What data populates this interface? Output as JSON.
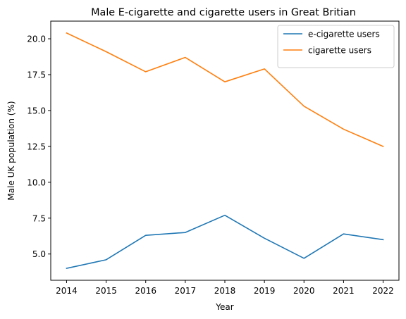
{
  "chart_data": {
    "type": "line",
    "title": "Male E-cigarette and cigarette users in Great Britian",
    "xlabel": "Year",
    "ylabel": "Male UK population (%)",
    "x": [
      2014,
      2015,
      2016,
      2017,
      2018,
      2019,
      2020,
      2021,
      2022
    ],
    "xlim": [
      2013.6,
      2022.4
    ],
    "ylim": [
      3.17,
      21.23
    ],
    "xticks": [
      "2014",
      "2015",
      "2016",
      "2017",
      "2018",
      "2019",
      "2020",
      "2021",
      "2022"
    ],
    "yticks": [
      "5.0",
      "7.5",
      "10.0",
      "12.5",
      "15.0",
      "17.5",
      "20.0"
    ],
    "grid": false,
    "legend_position": "top-right",
    "series": [
      {
        "name": "e-cigarette users",
        "color": "#1f77b4",
        "values": [
          4.0,
          4.6,
          6.3,
          6.5,
          7.7,
          6.1,
          4.7,
          6.4,
          6.0
        ]
      },
      {
        "name": "cigarette users",
        "color": "#ff7f0e",
        "values": [
          20.4,
          19.1,
          17.7,
          18.7,
          17.0,
          17.9,
          15.3,
          13.7,
          12.5
        ]
      }
    ]
  }
}
